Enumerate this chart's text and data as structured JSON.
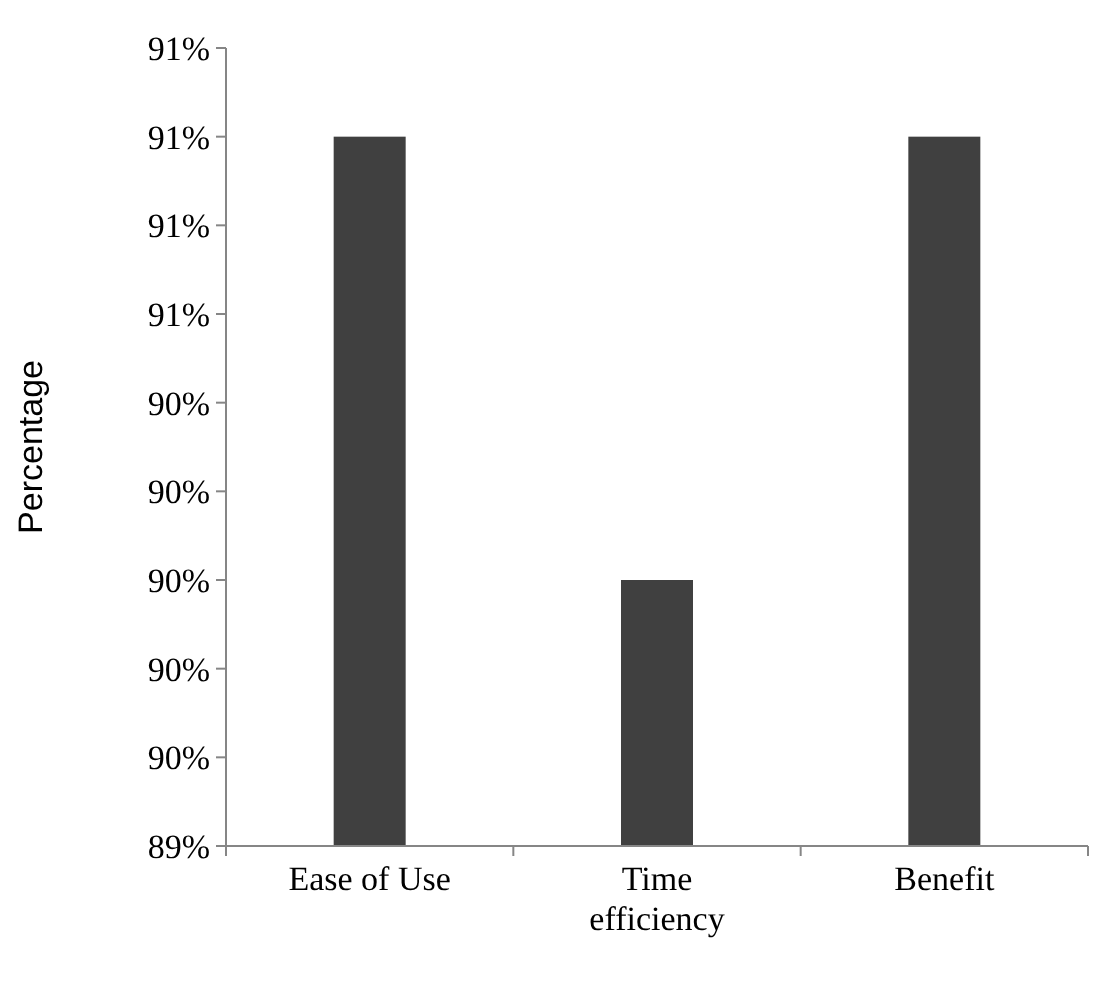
{
  "chart_data": {
    "type": "bar",
    "ylabel": "Percentage",
    "categories": [
      "Ease of Use",
      "Time efficiency",
      "Benefit"
    ],
    "values": [
      91.0,
      90.0,
      91.0
    ],
    "color": "#404040",
    "ylim": [
      89.4,
      91.2
    ],
    "yticks": [
      {
        "value": 89.4,
        "label": "89%"
      },
      {
        "value": 89.6,
        "label": "90%"
      },
      {
        "value": 89.8,
        "label": "90%"
      },
      {
        "value": 90.0,
        "label": "90%"
      },
      {
        "value": 90.2,
        "label": "90%"
      },
      {
        "value": 90.4,
        "label": "90%"
      },
      {
        "value": 90.6,
        "label": "91%"
      },
      {
        "value": 90.8,
        "label": "91%"
      },
      {
        "value": 91.0,
        "label": "91%"
      },
      {
        "value": 91.2,
        "label": "91%"
      }
    ]
  }
}
